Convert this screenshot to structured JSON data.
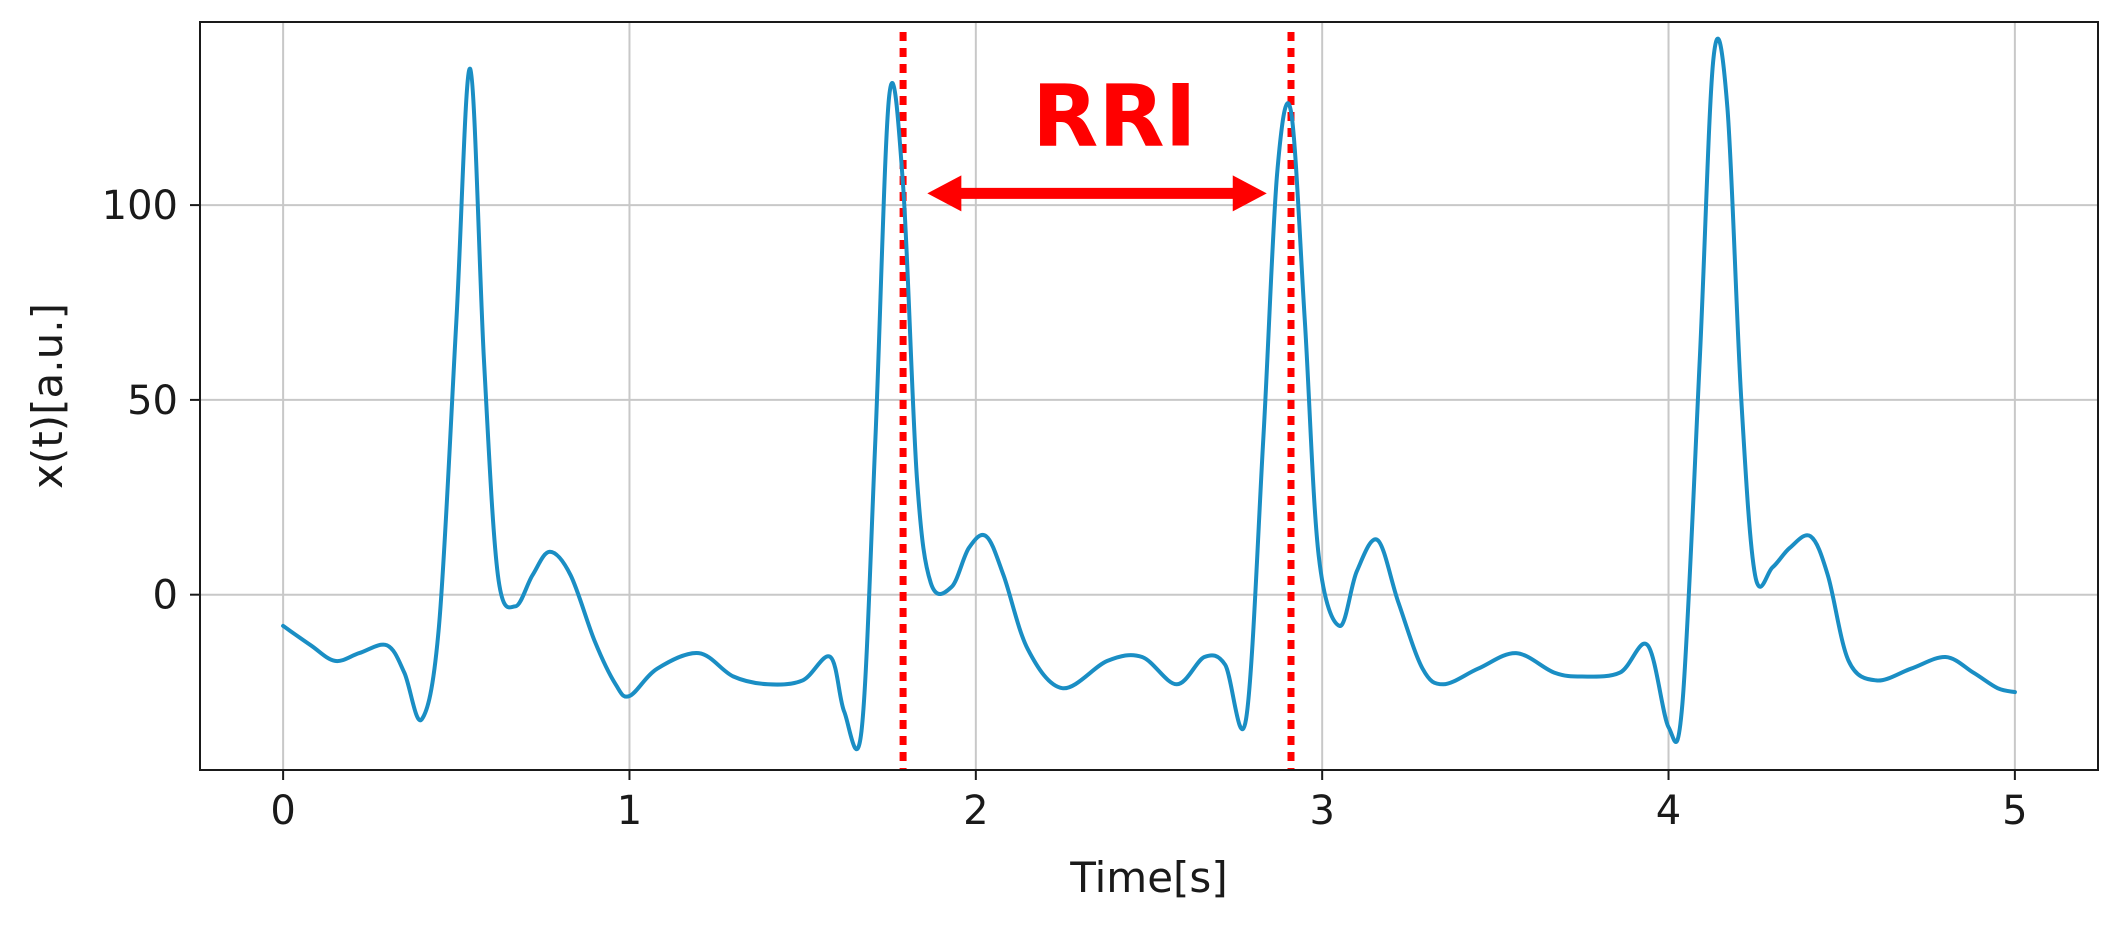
{
  "chart_data": {
    "type": "line",
    "title": "",
    "xlabel": "Time[s]",
    "ylabel": "x(t)[a.u.]",
    "xlim": [
      -0.24,
      5.24
    ],
    "ylim": [
      -45,
      147
    ],
    "x_ticks": [
      0,
      1,
      2,
      3,
      4,
      5
    ],
    "x_tick_labels": [
      "0",
      "1",
      "2",
      "3",
      "4",
      "5"
    ],
    "y_ticks": [
      0,
      50,
      100
    ],
    "y_tick_labels": [
      "0",
      "50",
      "100"
    ],
    "grid": true,
    "line_color": "#1a8ec4",
    "series": [
      {
        "x": [
          0,
          0.08,
          0.15,
          0.22,
          0.3,
          0.35,
          0.4,
          0.45,
          0.5,
          0.54,
          0.58,
          0.62,
          0.67,
          0.72,
          0.77,
          0.83,
          0.9,
          0.96,
          1.0,
          1.08,
          1.2,
          1.3,
          1.4,
          1.5,
          1.58,
          1.62,
          1.67,
          1.71,
          1.75,
          1.79,
          1.83,
          1.87,
          1.93,
          1.98,
          2.03,
          2.08,
          2.15,
          2.25,
          2.38,
          2.48,
          2.58,
          2.66,
          2.72,
          2.78,
          2.83,
          2.87,
          2.91,
          2.95,
          2.99,
          3.05,
          3.1,
          3.16,
          3.22,
          3.29,
          3.35,
          3.45,
          3.56,
          3.67,
          3.75,
          3.86,
          3.94,
          4.0,
          4.04,
          4.09,
          4.13,
          4.17,
          4.21,
          4.25,
          4.3,
          4.35,
          4.41,
          4.46,
          4.52,
          4.6,
          4.7,
          4.8,
          4.88,
          4.95,
          5.0
        ],
        "y": [
          -8,
          -13,
          -17,
          -15,
          -13,
          -20,
          -32,
          -8,
          70,
          135,
          60,
          5,
          -3,
          5,
          11,
          5,
          -12,
          -23,
          -26,
          -19,
          -15,
          -21,
          -23,
          -22,
          -16,
          -30,
          -35,
          40,
          128,
          105,
          30,
          3,
          2,
          12,
          15,
          5,
          -14,
          -24,
          -17,
          -16,
          -23,
          -16,
          -18,
          -32,
          40,
          108,
          124,
          70,
          10,
          -8,
          6,
          14,
          -2,
          -19,
          -23,
          -19,
          -15,
          -20,
          -21,
          -20,
          -13,
          -34,
          -28,
          60,
          138,
          125,
          50,
          5,
          7,
          12,
          15,
          5,
          -17,
          -22,
          -19,
          -16,
          -20,
          -24,
          -25
        ]
      }
    ],
    "markers": [
      {
        "x": 1.79,
        "color": "#ff0000",
        "style": "dotted"
      },
      {
        "x": 2.91,
        "color": "#ff0000",
        "style": "dotted"
      }
    ],
    "annotations": [
      {
        "text": "RRI",
        "x": 2.4,
        "y": 123,
        "color": "#ff0000"
      }
    ],
    "arrow": {
      "x_from": 1.86,
      "x_to": 2.84,
      "y": 103,
      "color": "#ff0000"
    }
  }
}
